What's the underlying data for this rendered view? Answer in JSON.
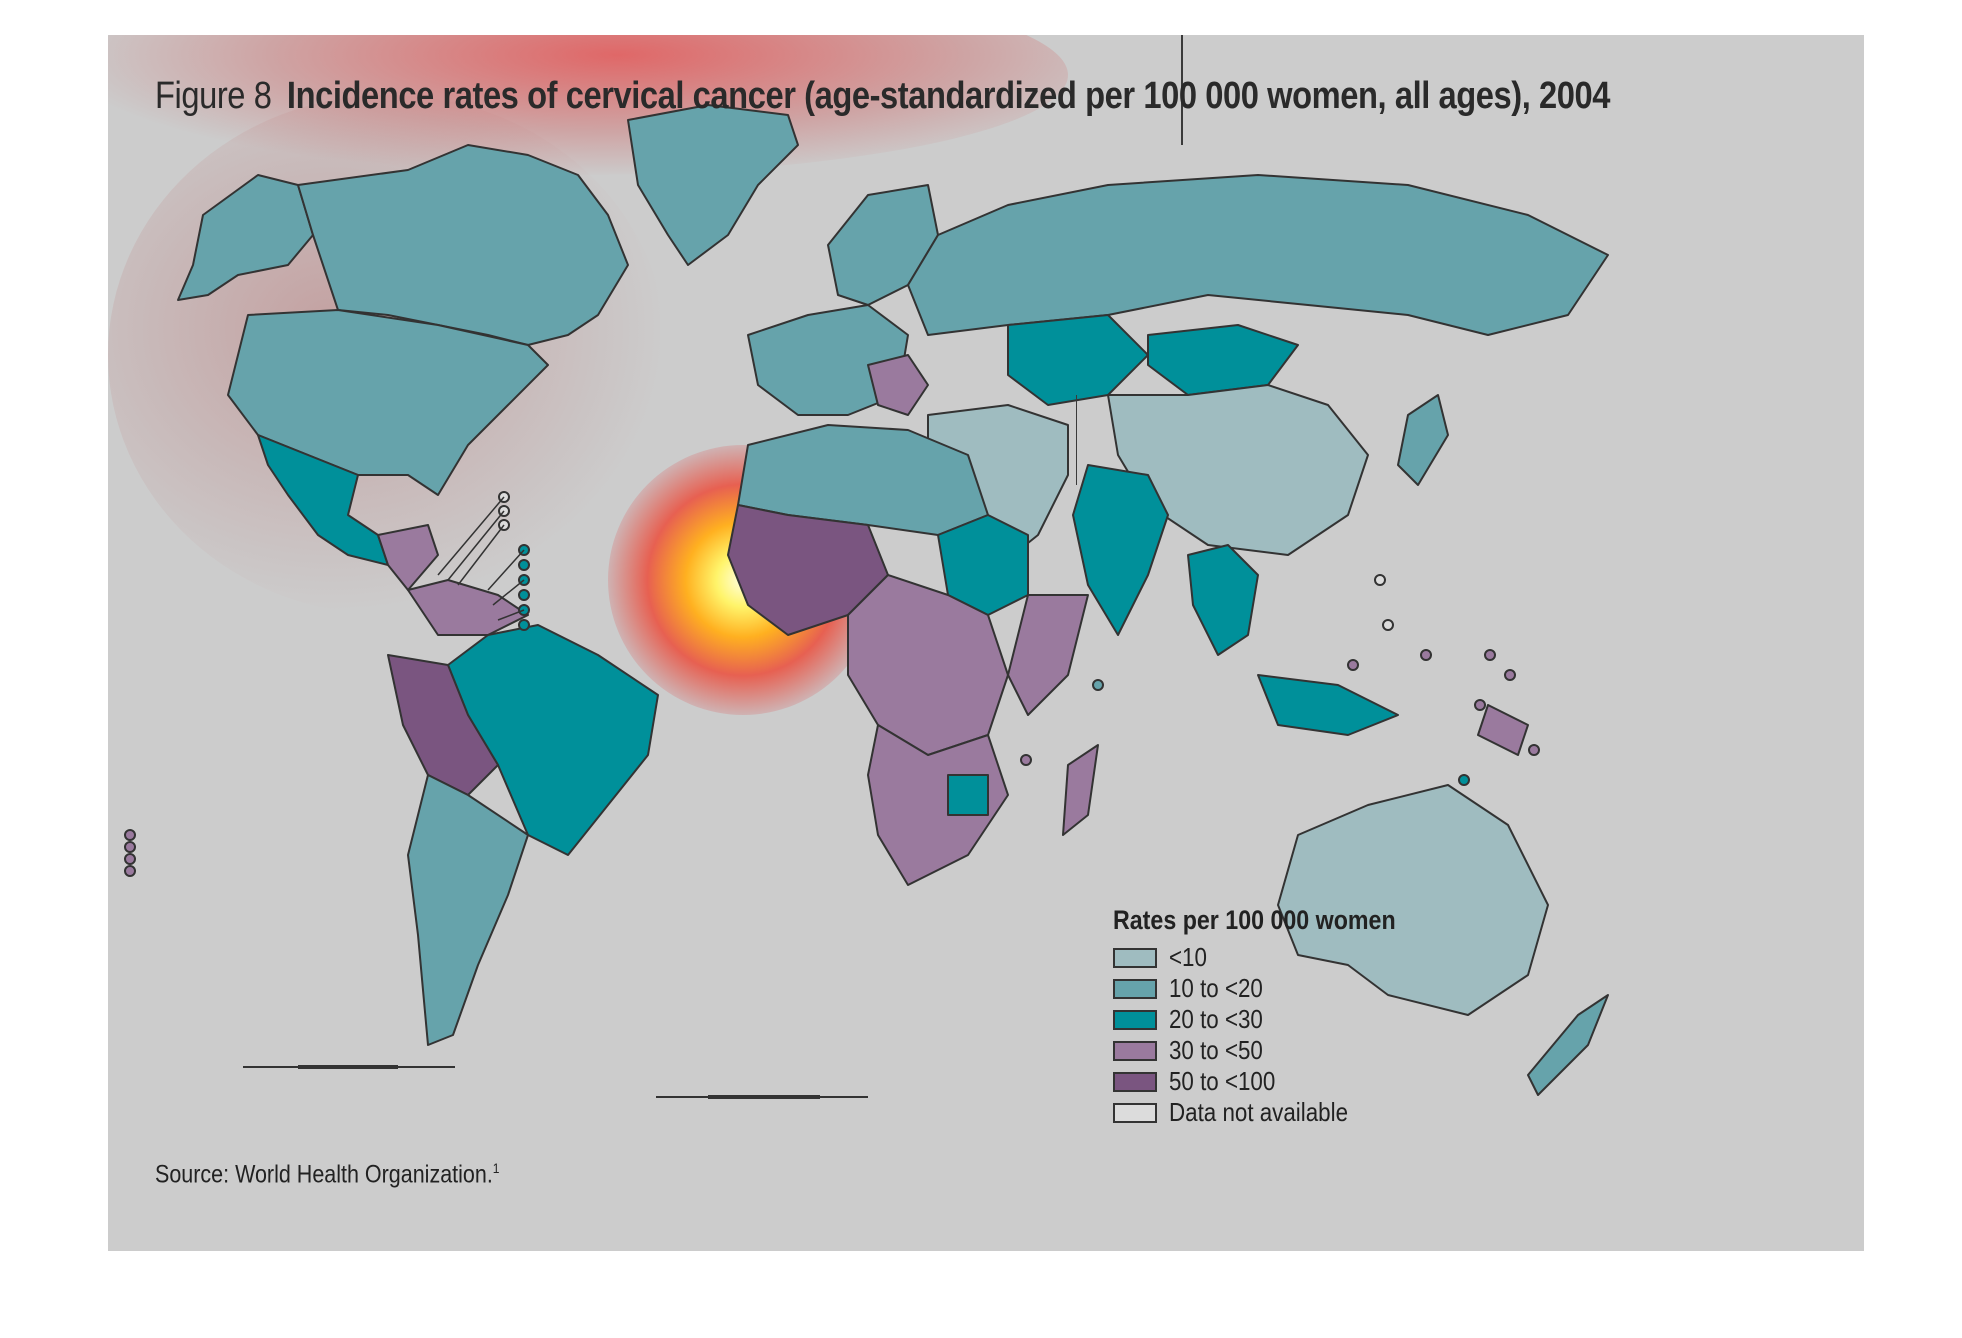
{
  "figure": {
    "label": "Figure 8",
    "title": "Incidence rates of cervical cancer (age-standardized per 100 000 women, all ages), 2004"
  },
  "legend": {
    "title": "Rates per 100 000 women",
    "items": [
      {
        "label": "<10",
        "color": "#9fbcc0"
      },
      {
        "label": "10 to <20",
        "color": "#66a3ab"
      },
      {
        "label": "20 to <30",
        "color": "#00909a"
      },
      {
        "label": "30 to <50",
        "color": "#9a7a9e"
      },
      {
        "label": "50 to <100",
        "color": "#7a5580"
      },
      {
        "label": "Data not available",
        "color": "#dcdcdc"
      }
    ]
  },
  "source": {
    "text": "Source: World Health Organization.",
    "ref": "1"
  },
  "colors": {
    "background": "#cccccc",
    "border": "#333333"
  }
}
